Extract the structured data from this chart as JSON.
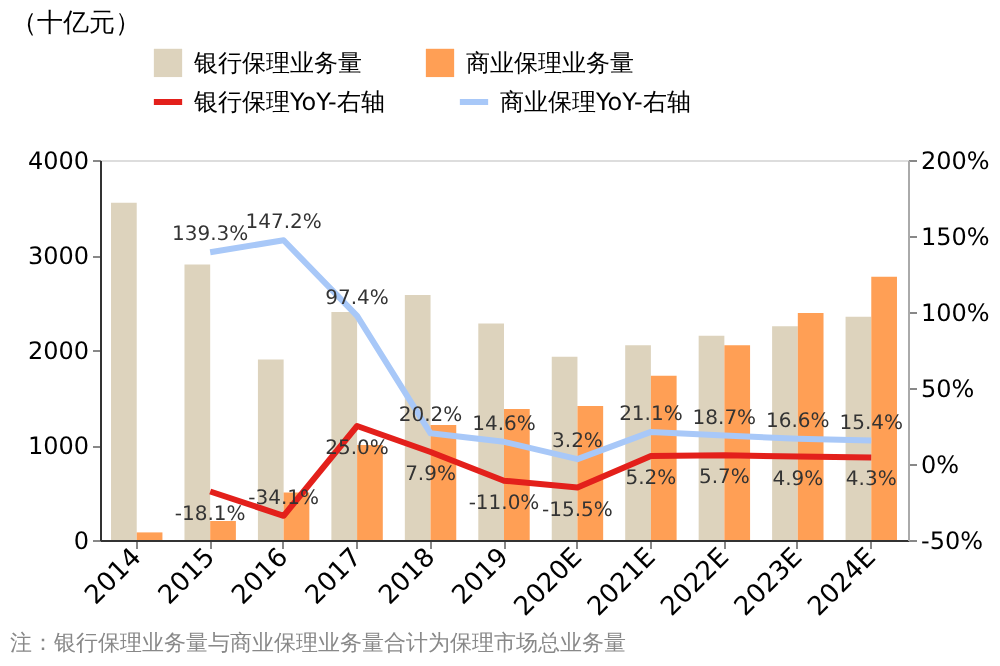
{
  "chart_data": {
    "type": "bar",
    "ylabel": "（十亿元）",
    "legend": "top",
    "categories": [
      "2014",
      "2015",
      "2016",
      "2017",
      "2018",
      "2019",
      "2020E",
      "2021E",
      "2022E",
      "2023E",
      "2024E"
    ],
    "series": [
      {
        "name": "银行保理业务量",
        "type": "bar",
        "color": "#ddd3bd",
        "values": [
          3550,
          2900,
          1900,
          2400,
          2580,
          2280,
          1930,
          2050,
          2150,
          2250,
          2350
        ]
      },
      {
        "name": "商业保理业务量",
        "type": "bar",
        "color": "#ff9f55",
        "values": [
          80,
          200,
          500,
          1000,
          1210,
          1380,
          1410,
          1730,
          2050,
          2390,
          2770
        ]
      },
      {
        "name": "银行保理YoY-右轴",
        "type": "line",
        "axis": "y2",
        "color": "#e3201b",
        "values": [
          null,
          -18.1,
          -34.1,
          25.0,
          7.9,
          -11.0,
          -15.5,
          5.2,
          5.7,
          4.9,
          4.3
        ],
        "value_labels": [
          null,
          "-18.1%",
          "-34.1%",
          "25.0%",
          "7.9%",
          "-11.0%",
          "-15.5%",
          "5.2%",
          "5.7%",
          "4.9%",
          "4.3%"
        ]
      },
      {
        "name": "商业保理YoY-右轴",
        "type": "line",
        "axis": "y2",
        "color": "#a8c8f8",
        "values": [
          null,
          139.3,
          147.2,
          97.4,
          20.2,
          14.6,
          3.2,
          21.1,
          18.7,
          16.6,
          15.4
        ],
        "value_labels": [
          null,
          "139.3%",
          "147.2%",
          "97.4%",
          "20.2%",
          "14.6%",
          "3.2%",
          "21.1%",
          "18.7%",
          "16.6%",
          "15.4%"
        ]
      }
    ],
    "ylim": [
      0,
      4000
    ],
    "yticks": [
      0,
      1000,
      2000,
      3000,
      4000
    ],
    "y2lim": [
      -50,
      200
    ],
    "y2ticks": [
      {
        "value": -50,
        "label": "-50%"
      },
      {
        "value": 0,
        "label": "0%"
      },
      {
        "value": 50,
        "label": "50%"
      },
      {
        "value": 100,
        "label": "100%"
      },
      {
        "value": 150,
        "label": "150%"
      },
      {
        "value": 200,
        "label": "200%"
      }
    ],
    "grid": false,
    "annotations": [
      "注：银行保理业务量与商业保理业务量合计为保理市场总业务量"
    ]
  }
}
